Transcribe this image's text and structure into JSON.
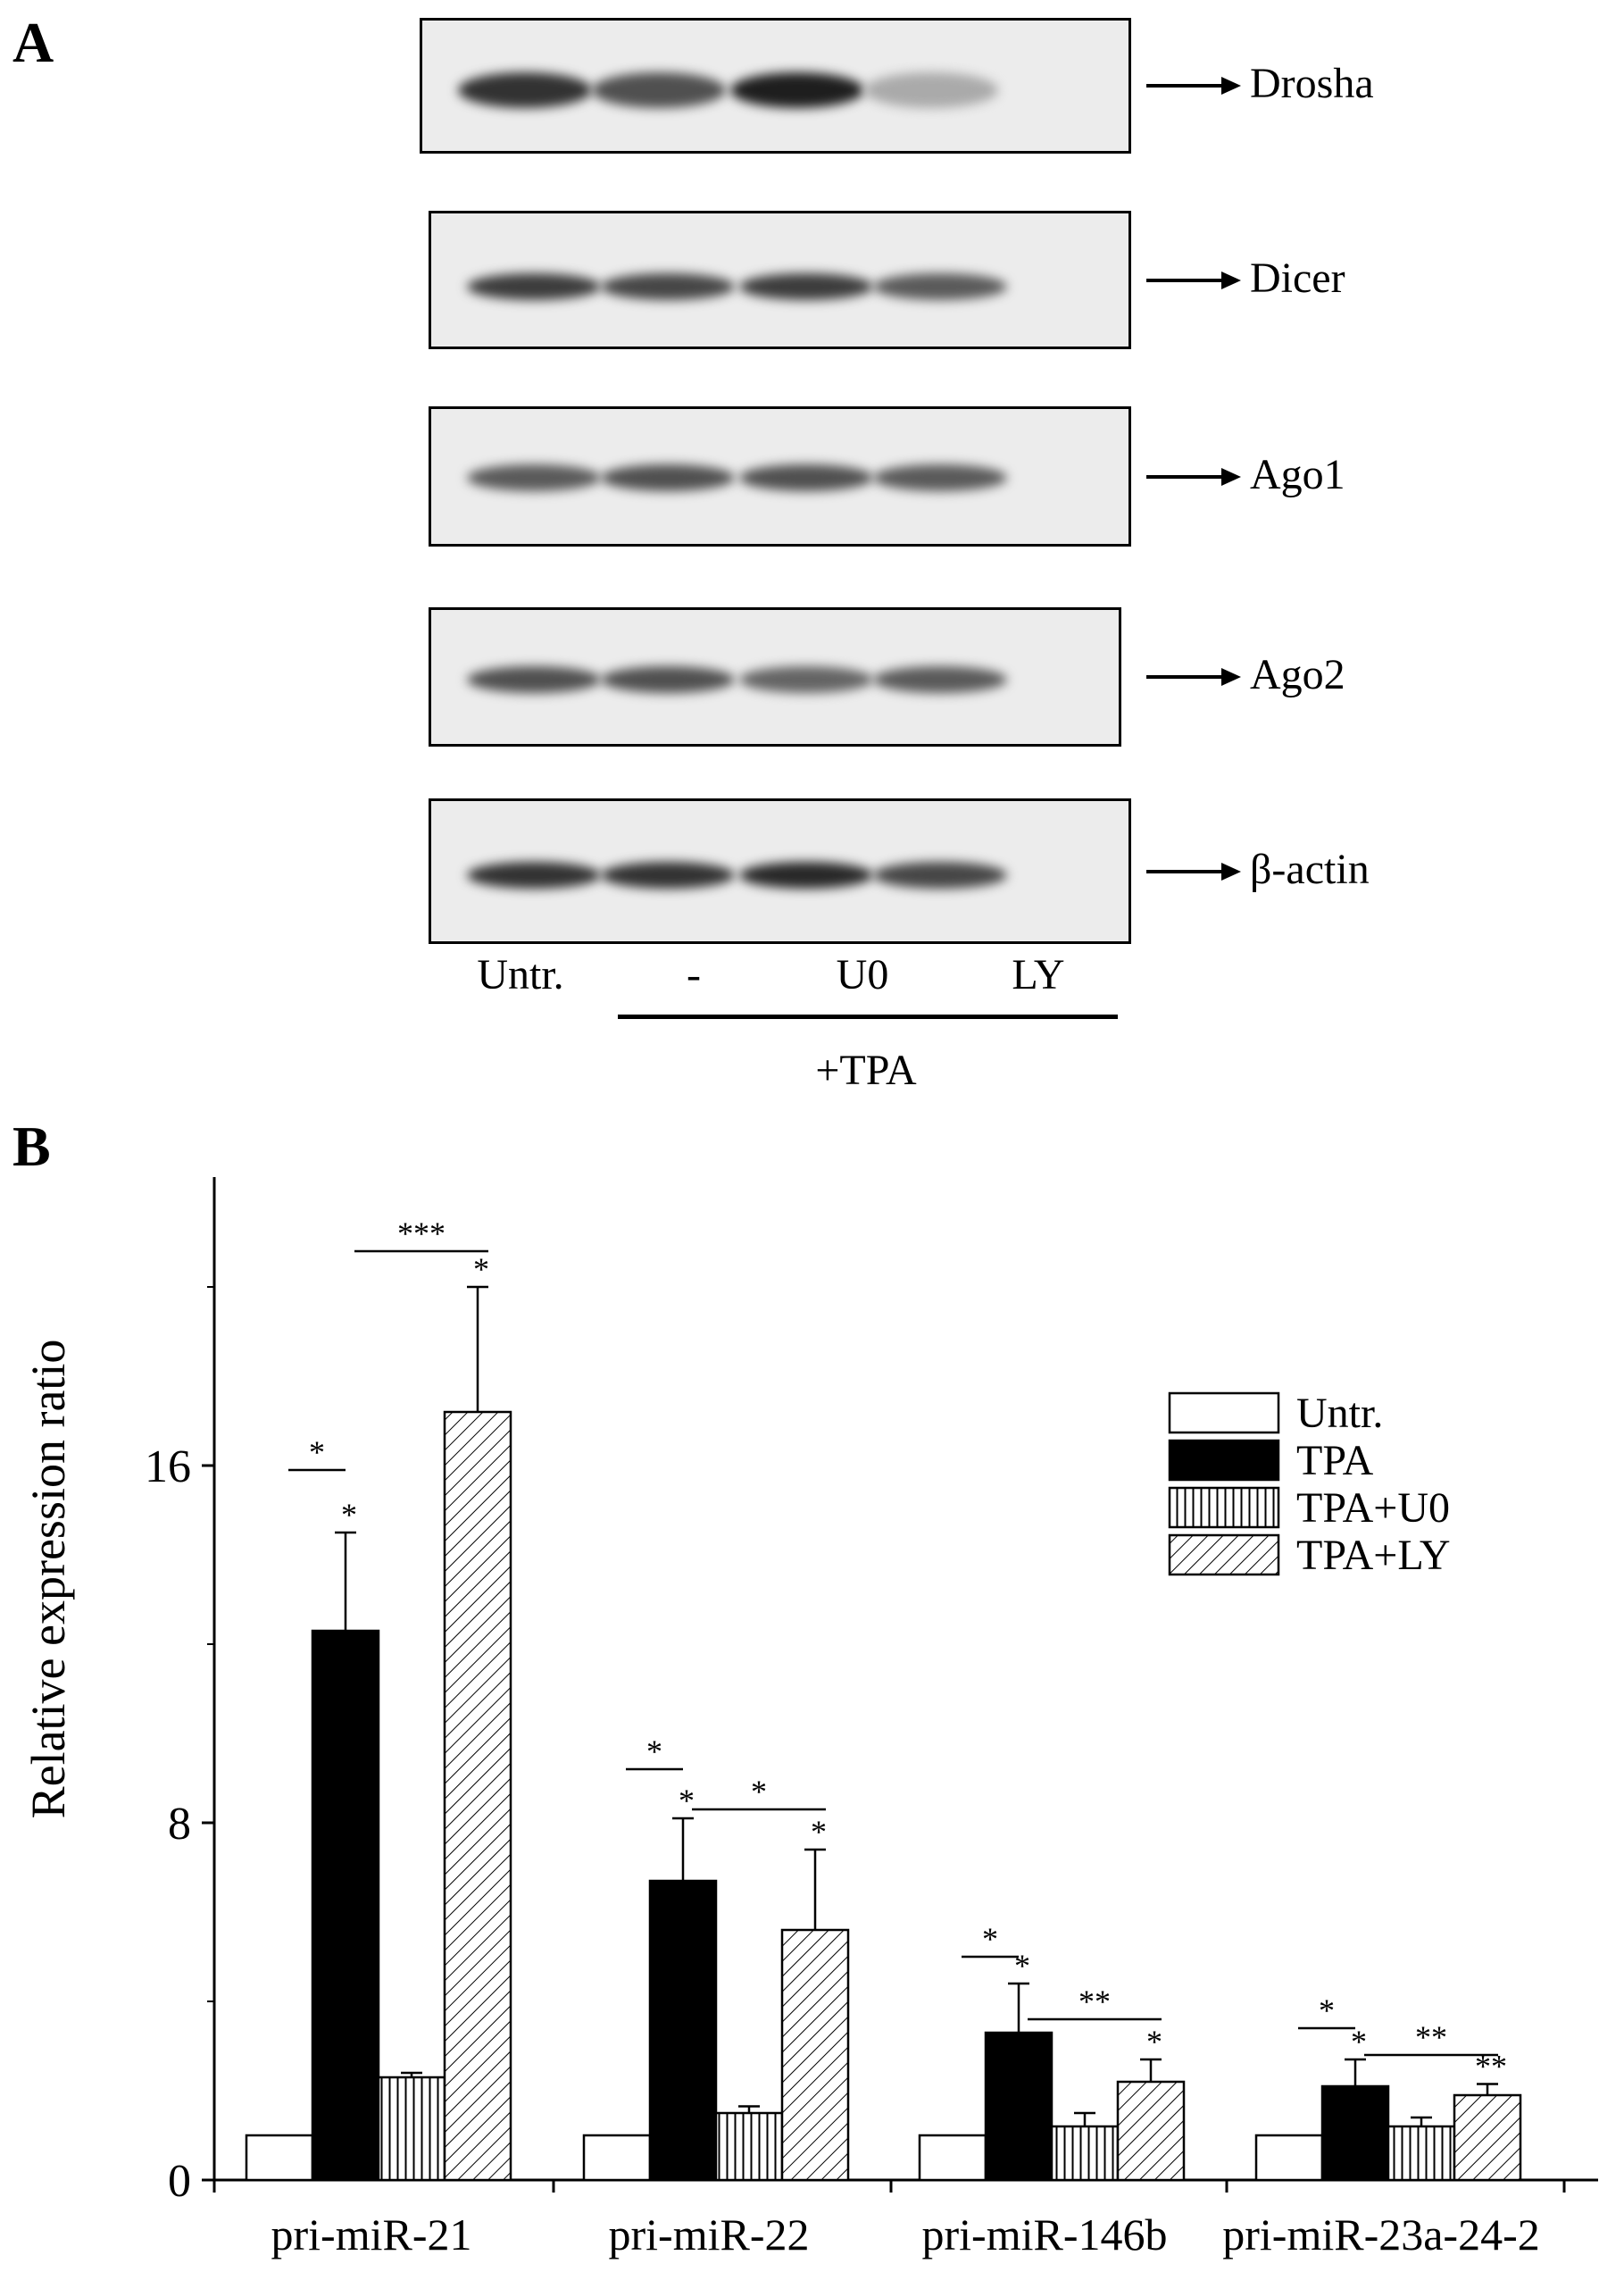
{
  "panel_a": {
    "letter": "A",
    "blots": [
      {
        "label": "Drosha",
        "band_intensity": [
          0.9,
          0.75,
          1.0,
          0.3
        ]
      },
      {
        "label": "Dicer",
        "band_intensity": [
          0.85,
          0.8,
          0.85,
          0.7
        ]
      },
      {
        "label": "Ago1",
        "band_intensity": [
          0.7,
          0.75,
          0.75,
          0.7
        ]
      },
      {
        "label": "Ago2",
        "band_intensity": [
          0.75,
          0.75,
          0.65,
          0.7
        ]
      },
      {
        "label": "β-actin",
        "band_intensity": [
          0.9,
          0.9,
          0.95,
          0.8
        ]
      }
    ],
    "lanes": [
      "Untr.",
      "-",
      "U0",
      "LY"
    ],
    "treatment_label": "+TPA"
  },
  "panel_b": {
    "letter": "B"
  },
  "chart_data": {
    "type": "bar",
    "categories": [
      "pri-miR-21",
      "pri-miR-22",
      "pri-miR-146b",
      "pri-miR-23a-24-2"
    ],
    "series": [
      {
        "name": "Untr.",
        "pattern": "white",
        "values": [
          1.0,
          1.0,
          1.0,
          1.0
        ],
        "errors": [
          0,
          0,
          0,
          0
        ],
        "stars": [
          "",
          "",
          "",
          ""
        ]
      },
      {
        "name": "TPA",
        "pattern": "black",
        "values": [
          12.3,
          6.7,
          3.3,
          2.1
        ],
        "errors": [
          2.2,
          1.4,
          1.1,
          0.6
        ],
        "stars": [
          "*",
          "*",
          "*",
          "*"
        ]
      },
      {
        "name": "TPA+U0",
        "pattern": "vertical",
        "values": [
          2.3,
          1.5,
          1.2,
          1.2
        ],
        "errors": [
          0.1,
          0.15,
          0.3,
          0.2
        ],
        "stars": [
          "",
          "",
          "",
          ""
        ]
      },
      {
        "name": "TPA+LY",
        "pattern": "diagonal",
        "values": [
          17.2,
          5.6,
          2.2,
          1.9
        ],
        "errors": [
          2.8,
          1.8,
          0.5,
          0.25
        ],
        "stars": [
          "*",
          "*",
          "*",
          "**"
        ]
      }
    ],
    "comparisons": [
      {
        "group": 0,
        "pair": [
          0,
          1
        ],
        "label": "*",
        "y": 15.9
      },
      {
        "group": 0,
        "pair": [
          1,
          3
        ],
        "label": "***",
        "y": 20.8
      },
      {
        "group": 1,
        "pair": [
          0,
          1
        ],
        "label": "*",
        "y": 9.2
      },
      {
        "group": 1,
        "pair": [
          1,
          3
        ],
        "label": "*",
        "y": 8.3
      },
      {
        "group": 2,
        "pair": [
          0,
          1
        ],
        "label": "*",
        "y": 5.0
      },
      {
        "group": 2,
        "pair": [
          1,
          3
        ],
        "label": "**",
        "y": 3.6
      },
      {
        "group": 3,
        "pair": [
          0,
          1
        ],
        "label": "*",
        "y": 3.4
      },
      {
        "group": 3,
        "pair": [
          1,
          3
        ],
        "label": "**",
        "y": 2.8
      }
    ],
    "ylabel": "Relative expression ratio",
    "yticks": [
      "0",
      "8",
      "16"
    ],
    "ylim": [
      0,
      22
    ],
    "legend_position": "top-right",
    "grid": false
  }
}
